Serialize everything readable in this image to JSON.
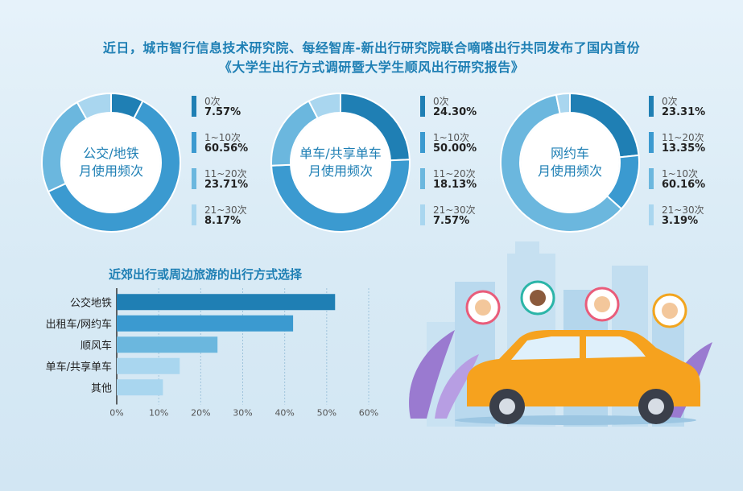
{
  "header": {
    "line1": "近日，城市智行信息技术研究院、每经智库-新出行研究院联合嘀嗒出行共同发布了国内首份",
    "line2": "《大学生出行方式调研暨大学生顺风出行研究报告》"
  },
  "colors": {
    "dark": "#1f7fb4",
    "mid": "#3b9ad0",
    "light": "#6bb7de",
    "pale": "#a9d6ef",
    "accent": "#1e7fb4"
  },
  "chart_data": [
    {
      "type": "pie",
      "title": "公交/地铁月使用频次",
      "center_lines": [
        "公交/地铁",
        "月使用频次"
      ],
      "slices": [
        {
          "label": "0次",
          "value_text": "7.57%",
          "value": 7.57,
          "shade": "dark"
        },
        {
          "label": "1~10次",
          "value_text": "60.56%",
          "value": 60.56,
          "shade": "mid"
        },
        {
          "label": "11~20次",
          "value_text": "23.71%",
          "value": 23.71,
          "shade": "light"
        },
        {
          "label": "21~30次",
          "value_text": "8.17%",
          "value": 8.17,
          "shade": "pale"
        }
      ]
    },
    {
      "type": "pie",
      "title": "单车/共享单车月使用频次",
      "center_lines": [
        "单车/共享单车",
        "月使用频次"
      ],
      "slices": [
        {
          "label": "0次",
          "value_text": "24.30%",
          "value": 24.3,
          "shade": "dark"
        },
        {
          "label": "1~10次",
          "value_text": "50.00%",
          "value": 50.0,
          "shade": "mid"
        },
        {
          "label": "11~20次",
          "value_text": "18.13%",
          "value": 18.13,
          "shade": "light"
        },
        {
          "label": "21~30次",
          "value_text": "7.57%",
          "value": 7.57,
          "shade": "pale"
        }
      ]
    },
    {
      "type": "pie",
      "title": "网约车月使用频次",
      "center_lines": [
        "网约车",
        "月使用频次"
      ],
      "slices": [
        {
          "label": "0次",
          "value_text": "23.31%",
          "value": 23.31,
          "shade": "dark"
        },
        {
          "label": "11~20次",
          "value_text": "13.35%",
          "value": 13.35,
          "shade": "mid"
        },
        {
          "label": "1~10次",
          "value_text": "60.16%",
          "value": 60.16,
          "shade": "light"
        },
        {
          "label": "21~30次",
          "value_text": "3.19%",
          "value": 3.19,
          "shade": "pale"
        }
      ]
    },
    {
      "type": "bar",
      "orientation": "horizontal",
      "title": "近郊出行或周边旅游的出行方式选择",
      "categories": [
        "公交地铁",
        "出租车/网约车",
        "顺风车",
        "单车/共享单车",
        "其他"
      ],
      "values": [
        52,
        42,
        24,
        15,
        11
      ],
      "xlim": [
        0,
        60
      ],
      "xticks": [
        "0%",
        "10%",
        "20%",
        "30%",
        "40%",
        "50%",
        "60%"
      ],
      "grid": true,
      "bar_shades": [
        "dark",
        "mid",
        "light",
        "pale",
        "pale"
      ]
    }
  ],
  "illustration": {
    "icons": [
      "city-skyline-icon",
      "car-icon",
      "person-pin-icon",
      "plant-icon"
    ]
  }
}
